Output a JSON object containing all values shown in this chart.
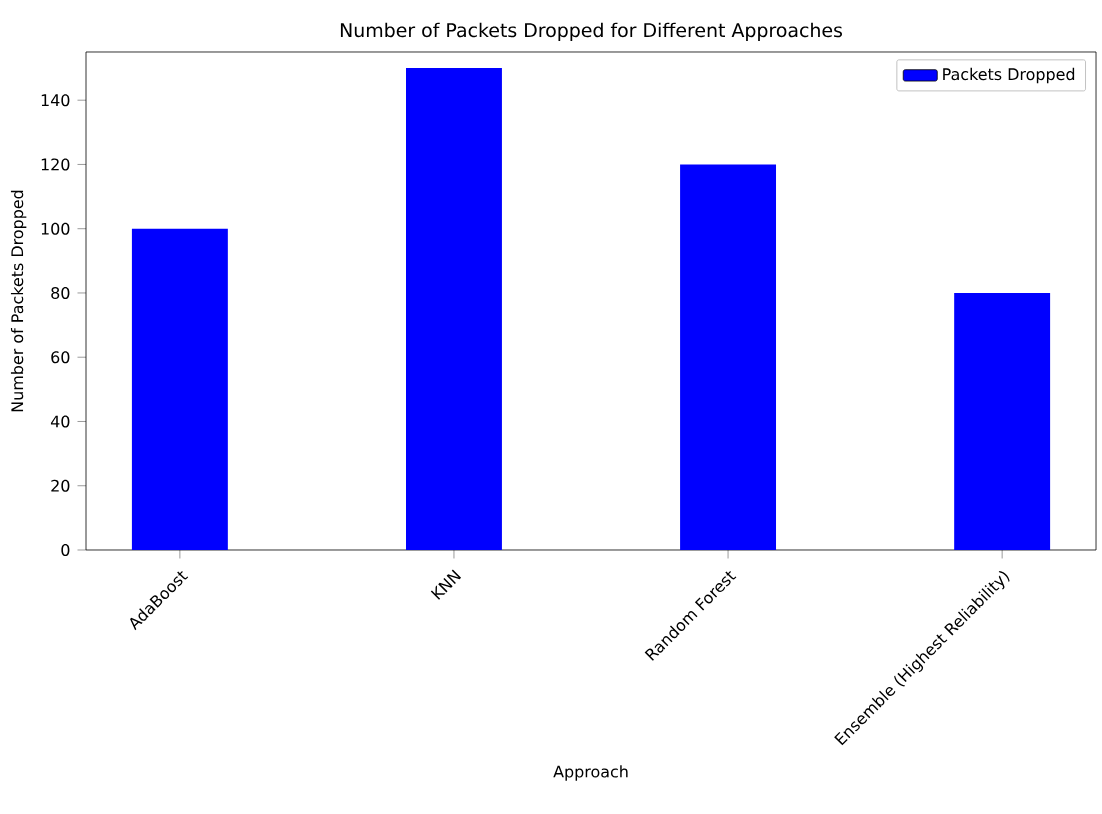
{
  "chart_data": {
    "type": "bar",
    "title": "Number of Packets Dropped for Different Approaches",
    "xlabel": "Approach",
    "ylabel": "Number of Packets Dropped",
    "categories": [
      "AdaBoost",
      "KNN",
      "Random Forest",
      "Ensemble (Highest Reliability)"
    ],
    "series": [
      {
        "name": "Packets Dropped",
        "color": "#0000ff",
        "values": [
          100,
          150,
          120,
          80
        ]
      }
    ],
    "ylim": [
      0,
      155
    ],
    "yticks": [
      0,
      20,
      40,
      60,
      80,
      100,
      120,
      140
    ],
    "legend": "top right",
    "grid": false
  }
}
